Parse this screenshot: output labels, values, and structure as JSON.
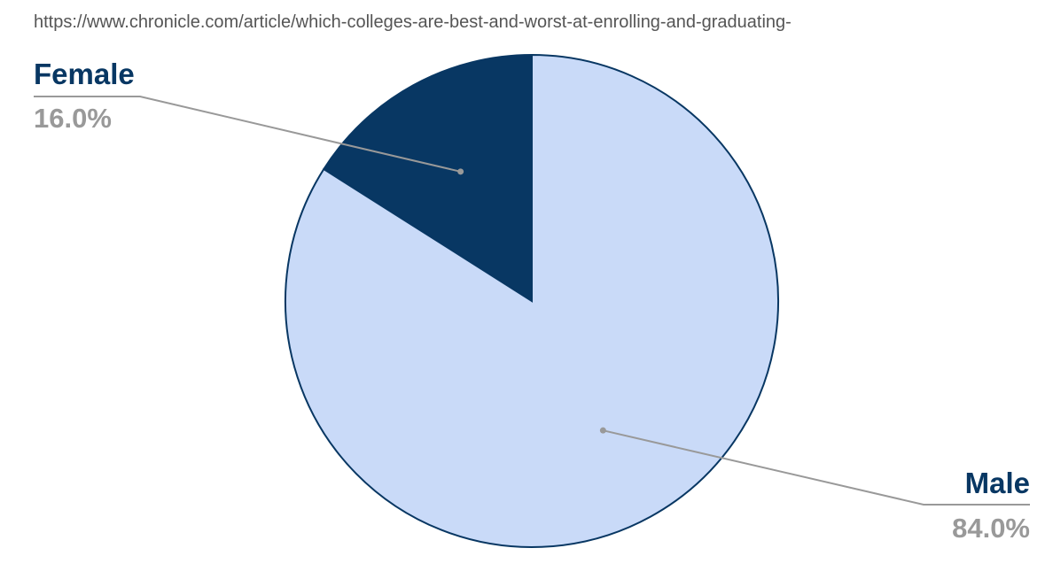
{
  "chart_data": {
    "type": "pie",
    "title": "https://www.chronicle.com/article/which-colleges-are-best-and-worst-at-enrolling-and-graduating-",
    "slices": [
      {
        "label": "Female",
        "value": 16.0,
        "value_label": "16.0%",
        "color": "#083763"
      },
      {
        "label": "Male",
        "value": 84.0,
        "value_label": "84.0%",
        "color": "#c9daf8"
      }
    ],
    "start_angle_deg": 0,
    "direction": "counterclockwise",
    "legend": "none",
    "label_style": "outside-leader-lines"
  },
  "colors": {
    "title": "#555555",
    "label_name": "#083763",
    "label_value": "#999999",
    "leader": "#999999",
    "slice_stroke": "#083763"
  }
}
